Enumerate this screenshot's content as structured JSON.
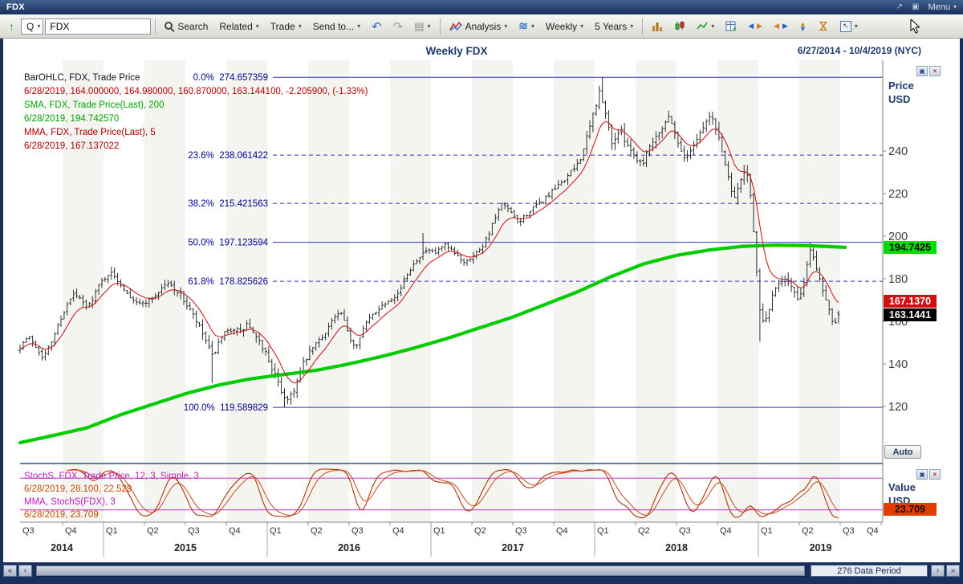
{
  "window": {
    "title": "FDX",
    "menu_label": "Menu"
  },
  "icons": {
    "chevron_down": "▾",
    "up_arrow": "↑",
    "undo": "↶",
    "redo": "↷",
    "image": "▤",
    "waves": "≋",
    "popout": "↗",
    "panel": "▣",
    "restore": "▣",
    "close": "×",
    "tri_left": "◀",
    "tri_right": "▶",
    "tri_up": "▲",
    "tri_down": "▼",
    "bowtie": "⋈",
    "cursor_nw": "↖",
    "scroll_far_left": "«",
    "scroll_left": "‹",
    "scroll_right": "›",
    "scroll_far_right": "»"
  },
  "toolbar": {
    "symbol_prefix": "Q",
    "symbol_value": "FDX",
    "search": "Search",
    "related": "Related",
    "trade": "Trade",
    "send_to": "Send to...",
    "analysis": "Analysis",
    "interval": "Weekly",
    "range": "5 Years"
  },
  "chart_header": {
    "title": "Weekly FDX",
    "date_range": "6/27/2014 - 10/4/2019 (NYC)"
  },
  "legend_main": {
    "line1": "BarOHLC, FDX, Trade Price",
    "line2": "6/28/2019, 164.000000, 164.980000, 160.870000, 163.144100, -2.205900, (-1.33%)",
    "line3": "SMA, FDX, Trade Price(Last), 200",
    "line4": "6/28/2019, 194.742570",
    "line5": "MMA, FDX, Trade Price(Last), 5",
    "line6": "6/28/2019, 167.137022"
  },
  "legend_stoch": {
    "line1": "StochS, FDX, Trade Price, 12, 3, Simple, 3",
    "line2": "6/28/2019, 28.100, 22.529",
    "line3": "MMA, StochS(FDX), 3",
    "line4": "6/28/2019, 23.709"
  },
  "axis": {
    "price_label": "Price",
    "value_label": "Value",
    "currency": "USD",
    "auto": "Auto"
  },
  "price_flags": {
    "sma": "194.7425",
    "mma": "167.1370",
    "last": "163.1441"
  },
  "stoch_flag": "23.709",
  "statusbar": {
    "data_period": "276 Data Period"
  },
  "chart_data": {
    "type": "ohlc",
    "title": "Weekly FDX",
    "x_domain": [
      2014.49,
      2019.76
    ],
    "bar_end": 2019.49,
    "bars": 261,
    "sma_end": 2019.53,
    "price_ticks": [
      240,
      220,
      200,
      180,
      160,
      140,
      120
    ],
    "x_quarters": [
      "Q3",
      "Q4",
      "Q1",
      "Q2",
      "Q3",
      "Q4",
      "Q1",
      "Q2",
      "Q3",
      "Q4",
      "Q1",
      "Q2",
      "Q3",
      "Q4",
      "Q1",
      "Q2",
      "Q3",
      "Q4",
      "Q1",
      "Q2",
      "Q3",
      "Q4"
    ],
    "x_years": [
      "2014",
      "2015",
      "2016",
      "2017",
      "2018",
      "2019"
    ],
    "fib_levels": [
      {
        "pct": "0.0%",
        "value": "274.657359",
        "price": 274.657359,
        "style": "solid"
      },
      {
        "pct": "23.6%",
        "value": "238.061422",
        "price": 238.061422,
        "style": "dashed"
      },
      {
        "pct": "38.2%",
        "value": "215.421563",
        "price": 215.421563,
        "style": "dashed"
      },
      {
        "pct": "50.0%",
        "value": "197.123594",
        "price": 197.123594,
        "style": "solid"
      },
      {
        "pct": "61.8%",
        "value": "178.825626",
        "price": 178.825626,
        "style": "dashed"
      },
      {
        "pct": "100.0%",
        "value": "119.589829",
        "price": 119.589829,
        "style": "solid"
      }
    ],
    "colors": {
      "bars": "#1a1a1a",
      "sma": "#00cc00",
      "mma": "#cc2020",
      "fib": "#3434bb",
      "fib_text": "#00008f",
      "stoch": "#b23000",
      "stoch_mma": "#c8481a",
      "stoch_band": "#cc2fcc"
    },
    "close_anchors": [
      [
        2014.49,
        148
      ],
      [
        2014.54,
        153
      ],
      [
        2014.58,
        149
      ],
      [
        2014.63,
        143
      ],
      [
        2014.68,
        150
      ],
      [
        2014.73,
        160
      ],
      [
        2014.78,
        168
      ],
      [
        2014.82,
        173
      ],
      [
        2014.86,
        170
      ],
      [
        2014.9,
        166
      ],
      [
        2014.94,
        172
      ],
      [
        2014.98,
        178
      ],
      [
        2015.04,
        183
      ],
      [
        2015.1,
        178
      ],
      [
        2015.16,
        172
      ],
      [
        2015.22,
        168
      ],
      [
        2015.28,
        170
      ],
      [
        2015.33,
        173
      ],
      [
        2015.38,
        178
      ],
      [
        2015.43,
        176
      ],
      [
        2015.48,
        171
      ],
      [
        2015.53,
        165
      ],
      [
        2015.58,
        158
      ],
      [
        2015.63,
        150
      ],
      [
        2015.66,
        143
      ],
      [
        2015.7,
        149
      ],
      [
        2015.74,
        154
      ],
      [
        2015.79,
        157
      ],
      [
        2015.84,
        155
      ],
      [
        2015.88,
        159
      ],
      [
        2015.93,
        152
      ],
      [
        2015.98,
        147
      ],
      [
        2016.03,
        138
      ],
      [
        2016.08,
        128
      ],
      [
        2016.12,
        123
      ],
      [
        2016.17,
        129
      ],
      [
        2016.22,
        140
      ],
      [
        2016.28,
        148
      ],
      [
        2016.34,
        153
      ],
      [
        2016.4,
        161
      ],
      [
        2016.45,
        164
      ],
      [
        2016.5,
        153
      ],
      [
        2016.54,
        148
      ],
      [
        2016.58,
        156
      ],
      [
        2016.63,
        162
      ],
      [
        2016.68,
        166
      ],
      [
        2016.74,
        170
      ],
      [
        2016.8,
        173
      ],
      [
        2016.86,
        183
      ],
      [
        2016.92,
        190
      ],
      [
        2016.97,
        193
      ],
      [
        2017.03,
        192
      ],
      [
        2017.08,
        196
      ],
      [
        2017.14,
        192
      ],
      [
        2017.2,
        188
      ],
      [
        2017.26,
        191
      ],
      [
        2017.32,
        196
      ],
      [
        2017.38,
        206
      ],
      [
        2017.43,
        215
      ],
      [
        2017.48,
        212
      ],
      [
        2017.53,
        206
      ],
      [
        2017.58,
        210
      ],
      [
        2017.64,
        214
      ],
      [
        2017.7,
        218
      ],
      [
        2017.76,
        222
      ],
      [
        2017.82,
        227
      ],
      [
        2017.88,
        232
      ],
      [
        2017.92,
        238
      ],
      [
        2017.96,
        248
      ],
      [
        2018.0,
        260
      ],
      [
        2018.03,
        268
      ],
      [
        2018.07,
        256
      ],
      [
        2018.11,
        243
      ],
      [
        2018.15,
        250
      ],
      [
        2018.19,
        245
      ],
      [
        2018.24,
        238
      ],
      [
        2018.29,
        234
      ],
      [
        2018.35,
        245
      ],
      [
        2018.41,
        251
      ],
      [
        2018.46,
        257
      ],
      [
        2018.51,
        243
      ],
      [
        2018.56,
        236
      ],
      [
        2018.61,
        244
      ],
      [
        2018.66,
        251
      ],
      [
        2018.71,
        257
      ],
      [
        2018.76,
        246
      ],
      [
        2018.81,
        230
      ],
      [
        2018.85,
        218
      ],
      [
        2018.89,
        226
      ],
      [
        2018.93,
        231
      ],
      [
        2018.96,
        212
      ],
      [
        2018.99,
        182
      ],
      [
        2019.02,
        158
      ],
      [
        2019.05,
        162
      ],
      [
        2019.09,
        172
      ],
      [
        2019.13,
        179
      ],
      [
        2019.17,
        181
      ],
      [
        2019.21,
        175
      ],
      [
        2019.25,
        168
      ],
      [
        2019.29,
        184
      ],
      [
        2019.32,
        194
      ],
      [
        2019.35,
        187
      ],
      [
        2019.39,
        176
      ],
      [
        2019.43,
        166
      ],
      [
        2019.46,
        159
      ],
      [
        2019.49,
        163.14
      ]
    ],
    "sma_anchors": [
      [
        2014.49,
        103
      ],
      [
        2014.7,
        106.5
      ],
      [
        2014.9,
        110
      ],
      [
        2015.1,
        116
      ],
      [
        2015.3,
        121
      ],
      [
        2015.5,
        126
      ],
      [
        2015.7,
        130
      ],
      [
        2015.9,
        133
      ],
      [
        2016.1,
        135
      ],
      [
        2016.3,
        137
      ],
      [
        2016.5,
        140
      ],
      [
        2016.7,
        143.5
      ],
      [
        2016.9,
        147.5
      ],
      [
        2017.1,
        152
      ],
      [
        2017.3,
        157
      ],
      [
        2017.5,
        162
      ],
      [
        2017.7,
        168
      ],
      [
        2017.9,
        174
      ],
      [
        2018.1,
        181
      ],
      [
        2018.3,
        187
      ],
      [
        2018.5,
        191
      ],
      [
        2018.7,
        193.5
      ],
      [
        2018.9,
        195.2
      ],
      [
        2019.1,
        195.8
      ],
      [
        2019.3,
        195.6
      ],
      [
        2019.53,
        194.74
      ]
    ],
    "vol_anchors": [
      [
        2014.49,
        2.2
      ],
      [
        2015.3,
        2.4
      ],
      [
        2015.6,
        3.5
      ],
      [
        2015.75,
        3.0
      ],
      [
        2016.05,
        3.8
      ],
      [
        2016.3,
        2.6
      ],
      [
        2017.0,
        2.2
      ],
      [
        2017.6,
        2.4
      ],
      [
        2017.95,
        3.2
      ],
      [
        2018.05,
        4.5
      ],
      [
        2018.2,
        3.6
      ],
      [
        2018.6,
        3.0
      ],
      [
        2018.85,
        4.0
      ],
      [
        2019.0,
        4.5
      ],
      [
        2019.2,
        3.4
      ],
      [
        2019.49,
        3.0
      ]
    ],
    "spikes": [
      {
        "t": 2015.05,
        "high": 185.7
      },
      {
        "t": 2015.66,
        "low": 131.0
      },
      {
        "t": 2016.11,
        "low": 119.589829
      },
      {
        "t": 2016.95,
        "high": 201.5
      },
      {
        "t": 2018.04,
        "high": 274.657359
      },
      {
        "t": 2019.0,
        "low": 150.5
      },
      {
        "t": 2019.31,
        "high": 197.0
      }
    ],
    "stoch_hlines": [
      80,
      20
    ],
    "stoch_params": {
      "length": 12,
      "smooth": 3,
      "d": 3,
      "mma": 3
    },
    "last_bar": {
      "open": 164.0,
      "high": 164.98,
      "low": 160.87,
      "close": 163.1441
    }
  }
}
